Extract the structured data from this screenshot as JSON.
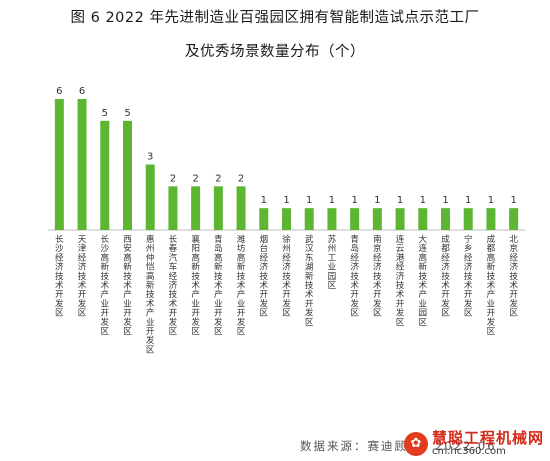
{
  "title_line1": "图 6   2022 年先进制造业百强园区拥有智能制造试点示范工厂",
  "title_line2": "及优秀场景数量分布（个）",
  "source": "数据来源：赛迪顾问，2022,06",
  "watermark": {
    "name": "慧聪工程机械网",
    "url": "cm.hc360.com"
  },
  "colors": {
    "bar": "#5cb632",
    "axis": "#bfbfbf",
    "text": "#333333"
  },
  "chart_data": {
    "type": "bar",
    "title": "2022 年先进制造业百强园区拥有智能制造试点示范工厂及优秀场景数量分布（个）",
    "xlabel": "",
    "ylabel": "",
    "ylim": [
      0,
      6
    ],
    "grid": false,
    "categories": [
      "长沙经济技术开发区",
      "天津经济技术开发区",
      "长沙高新技术产业开发区",
      "西安高新技术产业开发区",
      "惠州仲恺高新技术产业开发区",
      "长春汽车经济技术开发区",
      "襄阳高新技术产业开发区",
      "青岛高新技术产业开发区",
      "潍坊高新技术产业开发区",
      "烟台经济技术开发区",
      "徐州经济技术开发区",
      "武汉东湖新技术开发区",
      "苏州工业园区",
      "青岛经济技术开发区",
      "南京经济技术开发区",
      "连云港经济技术开发区",
      "大连高新技术产业园区",
      "成都经济技术开发区",
      "宁乡经济技术开发区",
      "成都高新技术产业开发区",
      "北京经济技术开发区"
    ],
    "values": [
      6,
      6,
      5,
      5,
      3,
      2,
      2,
      2,
      2,
      1,
      1,
      1,
      1,
      1,
      1,
      1,
      1,
      1,
      1,
      1,
      1
    ]
  }
}
